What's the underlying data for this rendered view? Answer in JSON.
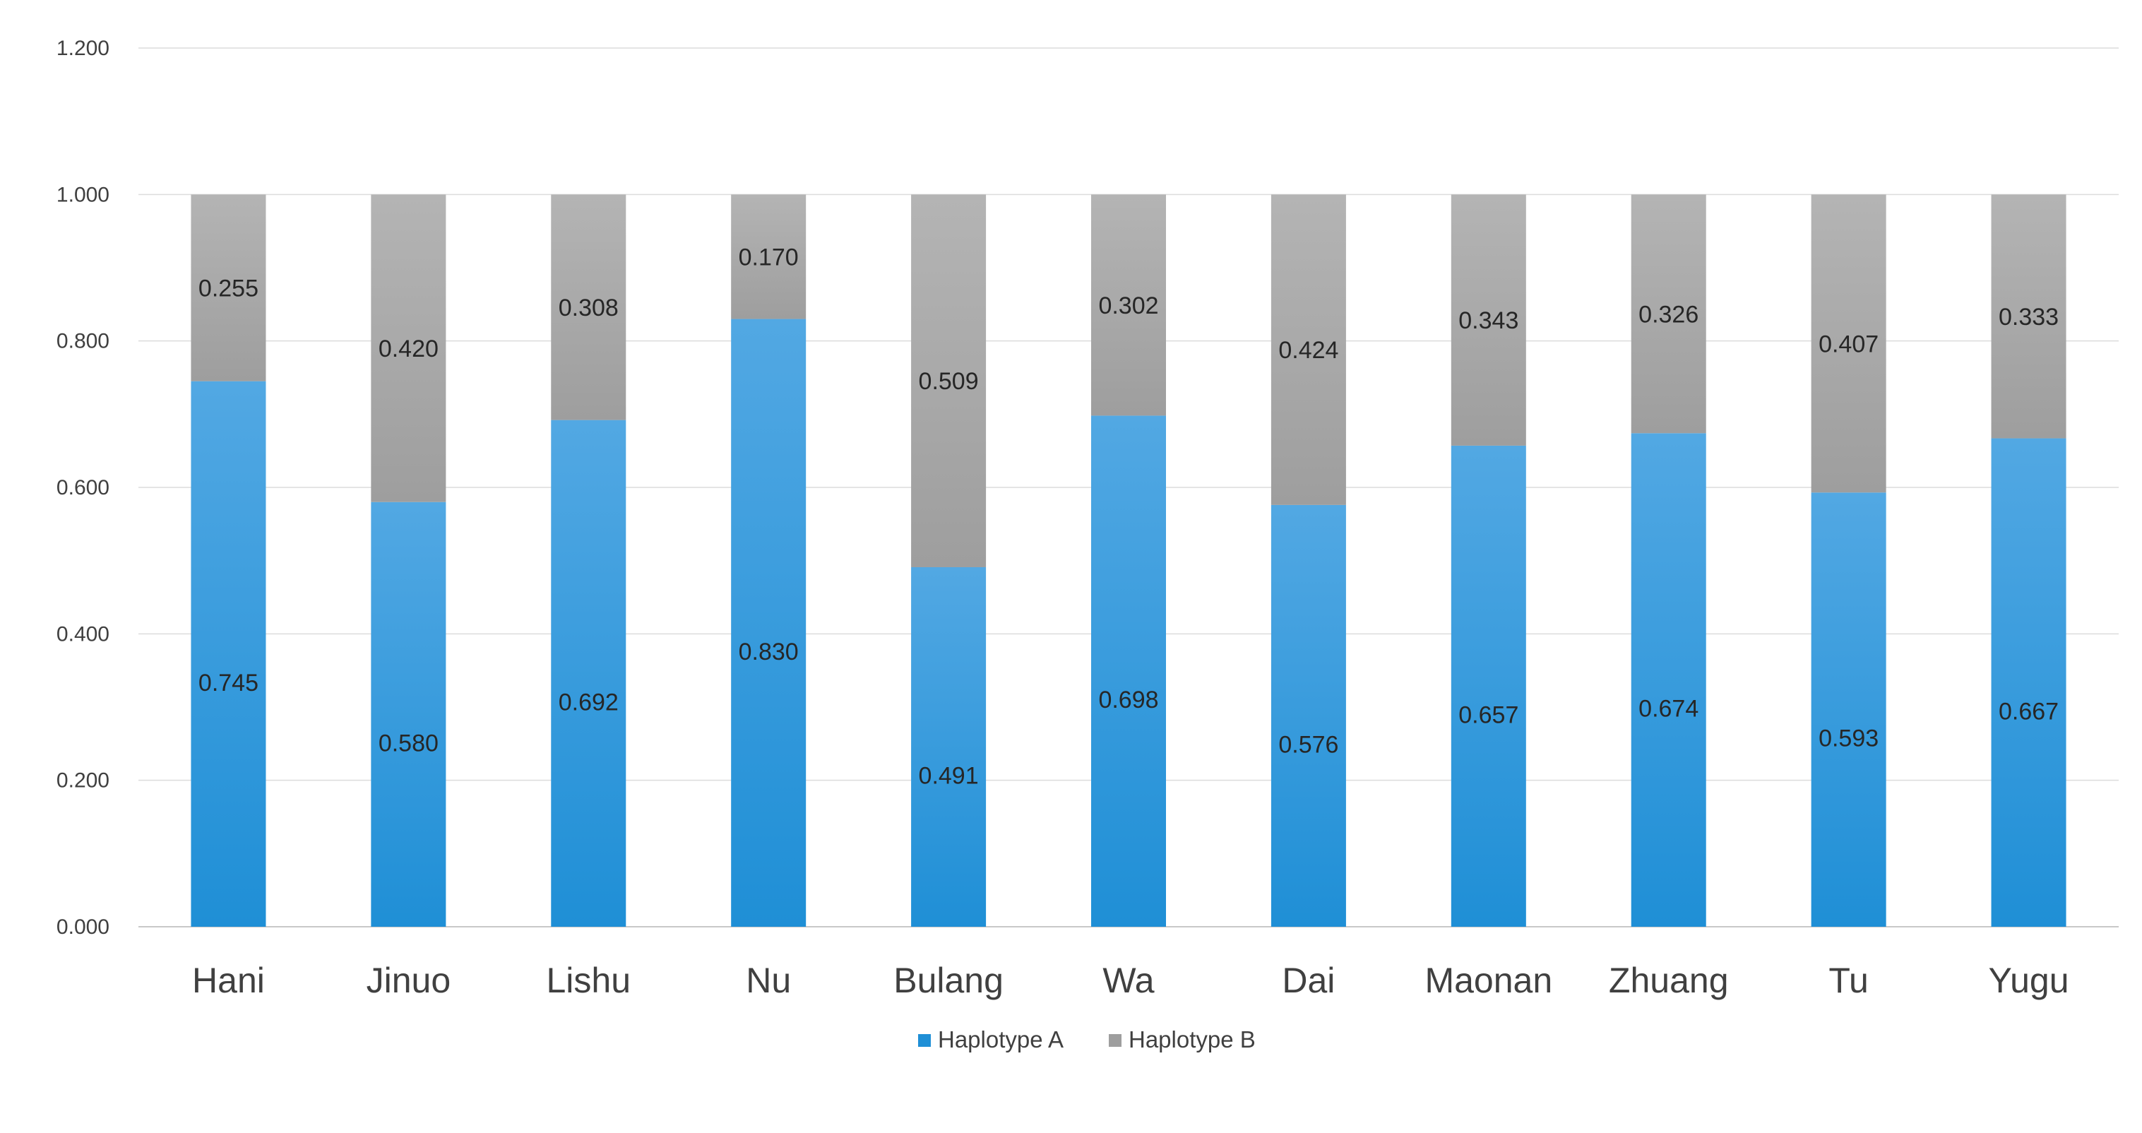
{
  "chart_data": {
    "type": "bar",
    "stacked": true,
    "categories": [
      "Hani",
      "Jinuo",
      "Lishu",
      "Nu",
      "Bulang",
      "Wa",
      "Dai",
      "Maonan",
      "Zhuang",
      "Tu",
      "Yugu"
    ],
    "series": [
      {
        "name": "Haplotype A",
        "color": "#1f8fd6",
        "values": [
          0.745,
          0.58,
          0.692,
          0.83,
          0.491,
          0.698,
          0.576,
          0.657,
          0.674,
          0.593,
          0.667
        ],
        "labels": [
          "0.745",
          "0.580",
          "0.692",
          "0.830",
          "0.491",
          "0.698",
          "0.576",
          "0.657",
          "0.674",
          "0.593",
          "0.667"
        ]
      },
      {
        "name": "Haplotype B",
        "color": "#9e9e9e",
        "values": [
          0.255,
          0.42,
          0.308,
          0.17,
          0.509,
          0.302,
          0.424,
          0.343,
          0.326,
          0.407,
          0.333
        ],
        "labels": [
          "0.255",
          "0.420",
          "0.308",
          "0.170",
          "0.509",
          "0.302",
          "0.424",
          "0.343",
          "0.326",
          "0.407",
          "0.333"
        ]
      }
    ],
    "title": "",
    "xlabel": "",
    "ylabel": "",
    "ylim": [
      0,
      1.2
    ],
    "yticks": [
      0,
      0.2,
      0.4,
      0.6,
      0.8,
      1.0,
      1.2
    ],
    "ytick_labels": [
      "0.000",
      "0.200",
      "0.400",
      "0.600",
      "0.800",
      "1.000",
      "1.200"
    ],
    "grid": true,
    "legend": "bottom"
  }
}
